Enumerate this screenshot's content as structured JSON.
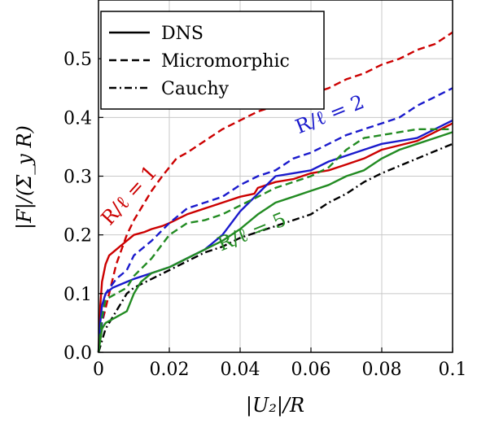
{
  "chart_data": {
    "type": "line",
    "xlabel": "|U₂|/R",
    "ylabel": "|F|/(Σ_y R)",
    "xlim": [
      0,
      0.1
    ],
    "ylim": [
      0,
      0.6
    ],
    "xticks": [
      0,
      0.02,
      0.04,
      0.06,
      0.08,
      0.1
    ],
    "xtick_labels": [
      "0",
      "0.02",
      "0.04",
      "0.06",
      "0.08",
      "0.1"
    ],
    "yticks": [
      0,
      0.1,
      0.2,
      0.3,
      0.4,
      0.5
    ],
    "ytick_labels": [
      "0.0",
      "0.1",
      "0.2",
      "0.3",
      "0.4",
      "0.5"
    ],
    "grid": true,
    "legend": {
      "placement": "top-left",
      "entries": [
        {
          "label": "DNS",
          "style": "solid"
        },
        {
          "label": "Micromorphic",
          "style": "dashed"
        },
        {
          "label": "Cauchy",
          "style": "dashdot"
        }
      ]
    },
    "annotations": [
      {
        "text": "R/ℓ = 1",
        "color": "#cc0000",
        "x": 0.01,
        "y": 0.26,
        "angle": -48
      },
      {
        "text": "R/ℓ = 2",
        "color": "#1a1acc",
        "x": 0.066,
        "y": 0.395,
        "angle": -22
      },
      {
        "text": "R/ℓ = 5",
        "color": "#228b22",
        "x": 0.044,
        "y": 0.195,
        "angle": -22
      }
    ],
    "series": [
      {
        "group": "R/ℓ = 1",
        "style": "solid",
        "color": "#cc0000",
        "x": [
          0,
          0.0005,
          0.001,
          0.002,
          0.003,
          0.005,
          0.007,
          0.009,
          0.01,
          0.013,
          0.015,
          0.018,
          0.02,
          0.025,
          0.03,
          0.035,
          0.04,
          0.044,
          0.045,
          0.05,
          0.055,
          0.06,
          0.065,
          0.07,
          0.075,
          0.08,
          0.09,
          0.1
        ],
        "y": [
          0,
          0.08,
          0.12,
          0.15,
          0.165,
          0.175,
          0.185,
          0.195,
          0.2,
          0.205,
          0.21,
          0.215,
          0.22,
          0.235,
          0.245,
          0.255,
          0.265,
          0.27,
          0.28,
          0.29,
          0.295,
          0.305,
          0.31,
          0.32,
          0.33,
          0.345,
          0.36,
          0.39
        ]
      },
      {
        "group": "R/ℓ = 1",
        "style": "dashed",
        "color": "#cc0000",
        "x": [
          0,
          0.001,
          0.003,
          0.005,
          0.008,
          0.01,
          0.013,
          0.015,
          0.018,
          0.02,
          0.022,
          0.025,
          0.03,
          0.035,
          0.04,
          0.045,
          0.05,
          0.055,
          0.06,
          0.065,
          0.07,
          0.075,
          0.08,
          0.085,
          0.09,
          0.095,
          0.1
        ],
        "y": [
          0,
          0.05,
          0.1,
          0.15,
          0.2,
          0.225,
          0.255,
          0.275,
          0.3,
          0.315,
          0.33,
          0.34,
          0.36,
          0.38,
          0.395,
          0.41,
          0.42,
          0.43,
          0.44,
          0.45,
          0.465,
          0.475,
          0.49,
          0.5,
          0.515,
          0.525,
          0.545
        ]
      },
      {
        "group": "R/ℓ = 1",
        "style": "dashdot",
        "color": "#000000",
        "x": [
          0,
          0.001,
          0.002,
          0.004,
          0.006,
          0.008,
          0.01,
          0.015,
          0.02,
          0.025,
          0.03,
          0.035,
          0.04,
          0.045,
          0.05,
          0.06,
          0.065,
          0.07,
          0.075,
          0.08,
          0.09,
          0.1
        ],
        "y": [
          0,
          0.02,
          0.04,
          0.06,
          0.08,
          0.1,
          0.11,
          0.125,
          0.14,
          0.155,
          0.17,
          0.18,
          0.195,
          0.205,
          0.215,
          0.235,
          0.255,
          0.27,
          0.29,
          0.305,
          0.33,
          0.355
        ]
      },
      {
        "group": "R/ℓ = 2",
        "style": "solid",
        "color": "#1a1acc",
        "x": [
          0,
          0.0005,
          0.001,
          0.002,
          0.004,
          0.006,
          0.008,
          0.01,
          0.015,
          0.02,
          0.025,
          0.03,
          0.035,
          0.04,
          0.045,
          0.05,
          0.055,
          0.06,
          0.065,
          0.07,
          0.075,
          0.08,
          0.09,
          0.1
        ],
        "y": [
          0,
          0.05,
          0.08,
          0.1,
          0.11,
          0.115,
          0.12,
          0.125,
          0.135,
          0.145,
          0.16,
          0.175,
          0.2,
          0.24,
          0.27,
          0.3,
          0.305,
          0.31,
          0.325,
          0.335,
          0.345,
          0.355,
          0.365,
          0.395
        ]
      },
      {
        "group": "R/ℓ = 2",
        "style": "dashed",
        "color": "#1a1acc",
        "x": [
          0,
          0.001,
          0.002,
          0.005,
          0.008,
          0.01,
          0.015,
          0.02,
          0.025,
          0.03,
          0.035,
          0.04,
          0.045,
          0.05,
          0.055,
          0.06,
          0.065,
          0.07,
          0.075,
          0.08,
          0.085,
          0.09,
          0.095,
          0.1
        ],
        "y": [
          0,
          0.05,
          0.1,
          0.125,
          0.14,
          0.165,
          0.19,
          0.22,
          0.245,
          0.255,
          0.265,
          0.285,
          0.3,
          0.31,
          0.33,
          0.34,
          0.355,
          0.37,
          0.38,
          0.39,
          0.4,
          0.42,
          0.435,
          0.45
        ]
      },
      {
        "group": "R/ℓ = 5",
        "style": "solid",
        "color": "#228b22",
        "x": [
          0,
          0.001,
          0.002,
          0.005,
          0.008,
          0.01,
          0.012,
          0.015,
          0.02,
          0.025,
          0.03,
          0.035,
          0.04,
          0.045,
          0.05,
          0.055,
          0.06,
          0.065,
          0.07,
          0.075,
          0.08,
          0.085,
          0.09,
          0.095,
          0.1
        ],
        "y": [
          0,
          0.04,
          0.05,
          0.06,
          0.07,
          0.1,
          0.12,
          0.135,
          0.145,
          0.16,
          0.175,
          0.19,
          0.21,
          0.235,
          0.255,
          0.265,
          0.275,
          0.285,
          0.3,
          0.31,
          0.33,
          0.345,
          0.355,
          0.365,
          0.375
        ]
      },
      {
        "group": "R/ℓ = 5",
        "style": "dashed",
        "color": "#228b22",
        "x": [
          0,
          0.001,
          0.002,
          0.005,
          0.008,
          0.01,
          0.015,
          0.02,
          0.025,
          0.03,
          0.035,
          0.04,
          0.045,
          0.05,
          0.055,
          0.06,
          0.065,
          0.07,
          0.075,
          0.08,
          0.09,
          0.1
        ],
        "y": [
          0,
          0.06,
          0.09,
          0.1,
          0.11,
          0.13,
          0.16,
          0.2,
          0.22,
          0.225,
          0.235,
          0.25,
          0.265,
          0.28,
          0.29,
          0.3,
          0.315,
          0.345,
          0.365,
          0.37,
          0.38,
          0.38
        ]
      }
    ]
  }
}
